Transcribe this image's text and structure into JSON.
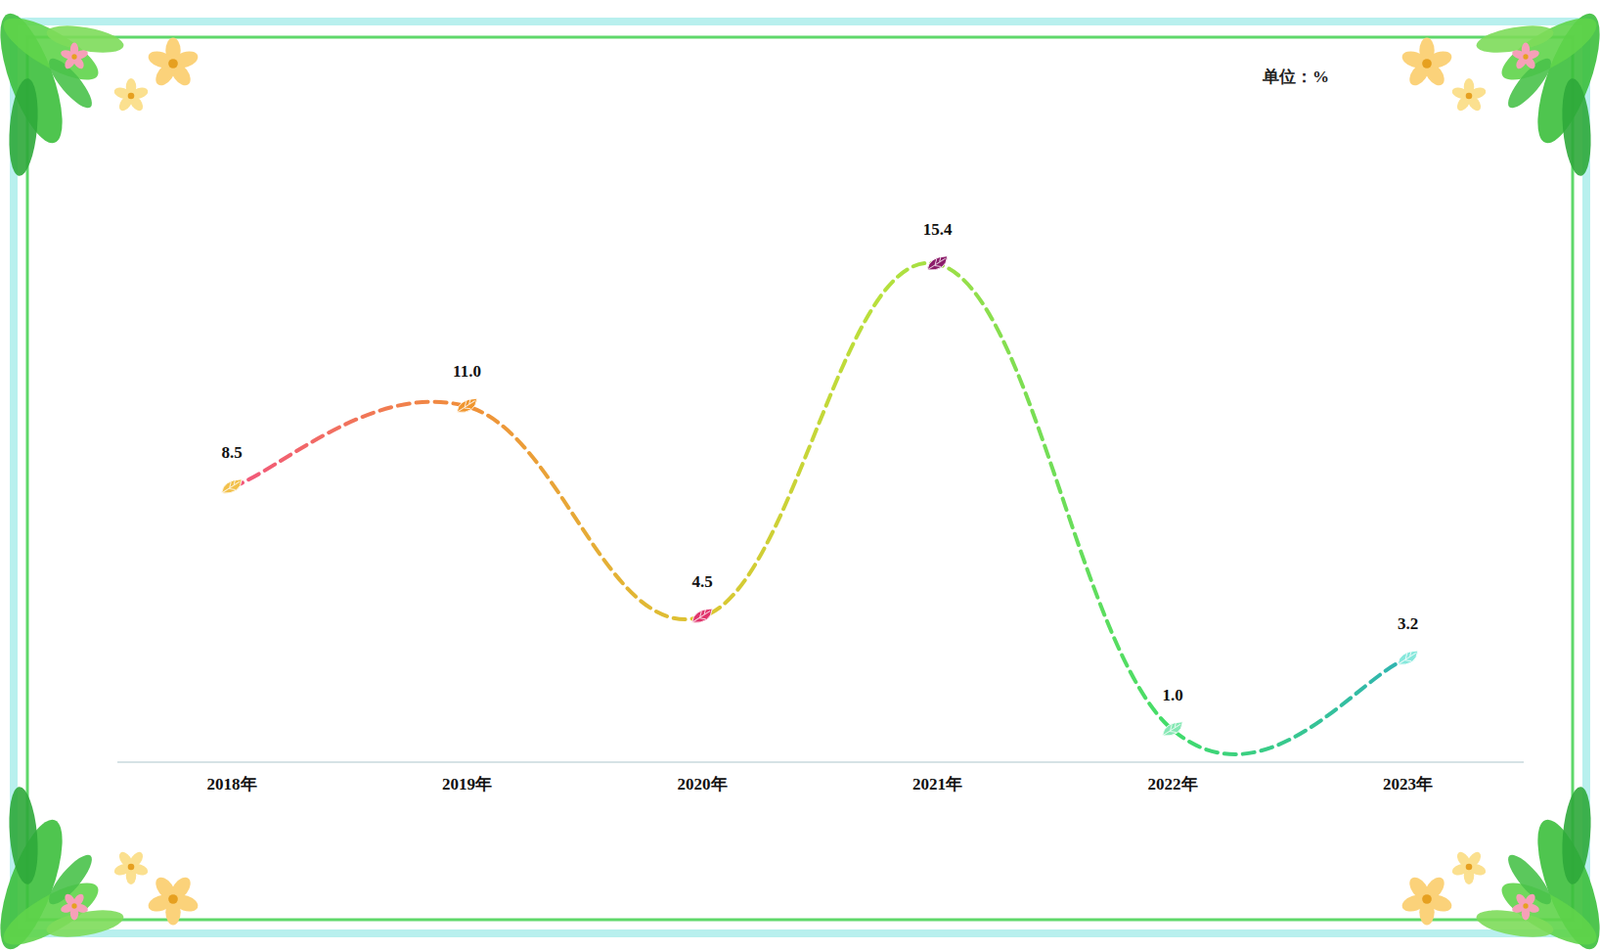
{
  "chart_data": {
    "type": "line",
    "unit_label": "单位：%",
    "categories": [
      "2018年",
      "2019年",
      "2020年",
      "2021年",
      "2022年",
      "2023年"
    ],
    "values": [
      8.5,
      11.0,
      4.5,
      15.4,
      1.0,
      3.2
    ],
    "value_labels": [
      "8.5",
      "11.0",
      "4.5",
      "15.4",
      "1.0",
      "3.2"
    ],
    "colors": [
      "#f2c04a",
      "#f0962e",
      "#e0356c",
      "#8c1d6a",
      "#86e8b4",
      "#86e8dc"
    ],
    "marker": "leaf",
    "line_style": "dashed",
    "ylim": [
      0,
      18
    ],
    "data_labels": true,
    "tick_labels": "x",
    "grid": false
  }
}
